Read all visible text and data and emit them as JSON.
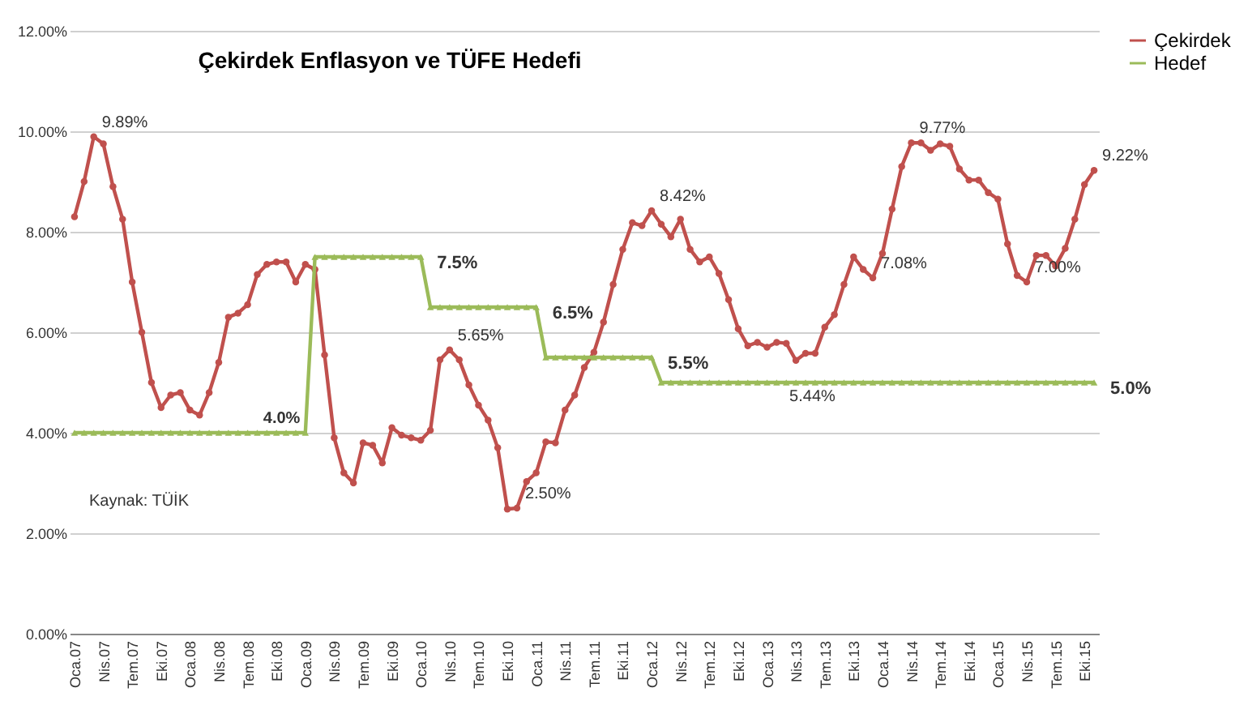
{
  "chart_data": {
    "type": "line",
    "title": "Çekirdek Enflasyon ve TÜFE Hedefi",
    "categories": [
      "Oca.07",
      null,
      null,
      "Nis.07",
      null,
      null,
      "Tem.07",
      null,
      null,
      "Eki.07",
      null,
      null,
      "Oca.08",
      null,
      null,
      "Nis.08",
      null,
      null,
      "Tem.08",
      null,
      null,
      "Eki.08",
      null,
      null,
      "Oca.09",
      null,
      null,
      "Nis.09",
      null,
      null,
      "Tem.09",
      null,
      null,
      "Eki.09",
      null,
      null,
      "Oca.10",
      null,
      null,
      "Nis.10",
      null,
      null,
      "Tem.10",
      null,
      null,
      "Eki.10",
      null,
      null,
      "Oca.11",
      null,
      null,
      "Nis.11",
      null,
      null,
      "Tem.11",
      null,
      null,
      "Eki.11",
      null,
      null,
      "Oca.12",
      null,
      null,
      "Nis.12",
      null,
      null,
      "Tem.12",
      null,
      null,
      "Eki.12",
      null,
      null,
      "Oca.13",
      null,
      null,
      "Nis.13",
      null,
      null,
      "Tem.13",
      null,
      null,
      "Eki.13",
      null,
      null,
      "Oca.14",
      null,
      null,
      "Nis.14",
      null,
      null,
      "Tem.14",
      null,
      null,
      "Eki.14",
      null,
      null,
      "Oca.15",
      null,
      null,
      "Nis.15",
      null,
      null,
      "Tem.15",
      null,
      null,
      "Eki.15",
      null
    ],
    "series": [
      {
        "name": "Çekirdek",
        "color": "#c0504d",
        "marker": "circle",
        "values": [
          8.3,
          9.0,
          9.89,
          9.75,
          8.9,
          8.25,
          7.0,
          6.0,
          5.0,
          4.5,
          4.75,
          4.8,
          4.45,
          4.35,
          4.8,
          5.4,
          6.3,
          6.38,
          6.55,
          7.15,
          7.35,
          7.4,
          7.4,
          7.0,
          7.35,
          7.25,
          5.55,
          3.9,
          3.2,
          3.0,
          3.8,
          3.75,
          3.4,
          4.1,
          3.95,
          3.9,
          3.85,
          4.05,
          5.45,
          5.65,
          5.45,
          4.95,
          4.55,
          4.25,
          3.7,
          2.48,
          2.5,
          3.03,
          3.2,
          3.82,
          3.8,
          4.45,
          4.75,
          5.3,
          5.6,
          6.2,
          6.95,
          7.65,
          8.18,
          8.12,
          8.42,
          8.15,
          7.9,
          8.25,
          7.65,
          7.4,
          7.5,
          7.17,
          6.65,
          6.07,
          5.73,
          5.8,
          5.7,
          5.8,
          5.78,
          5.44,
          5.58,
          5.58,
          6.1,
          6.35,
          6.95,
          7.5,
          7.25,
          7.08,
          7.57,
          8.45,
          9.3,
          9.77,
          9.77,
          9.62,
          9.75,
          9.7,
          9.25,
          9.03,
          9.03,
          8.78,
          8.65,
          7.76,
          7.13,
          7.0,
          7.53,
          7.53,
          7.32,
          7.67,
          8.25,
          8.94,
          9.22
        ],
        "value_labels": [
          null,
          null,
          "9.89%",
          null,
          null,
          null,
          null,
          null,
          null,
          null,
          null,
          null,
          null,
          null,
          null,
          null,
          null,
          null,
          null,
          null,
          null,
          null,
          null,
          null,
          null,
          null,
          null,
          null,
          null,
          null,
          null,
          null,
          null,
          null,
          null,
          null,
          null,
          null,
          null,
          "5.65%",
          null,
          null,
          null,
          null,
          null,
          null,
          "2.50%",
          null,
          null,
          null,
          null,
          null,
          null,
          null,
          null,
          null,
          null,
          null,
          null,
          null,
          "8.42%",
          null,
          null,
          null,
          null,
          null,
          null,
          null,
          null,
          null,
          null,
          null,
          null,
          null,
          null,
          "5.44%",
          null,
          null,
          null,
          null,
          null,
          null,
          null,
          "7.08%",
          null,
          null,
          null,
          "9.77%",
          null,
          null,
          null,
          null,
          null,
          null,
          null,
          null,
          null,
          null,
          null,
          "7.00%",
          null,
          null,
          null,
          null,
          null,
          null,
          "9.22%"
        ]
      },
      {
        "name": "Hedef",
        "color": "#9bbb59",
        "marker": "triangle",
        "values": [
          4.0,
          4.0,
          4.0,
          4.0,
          4.0,
          4.0,
          4.0,
          4.0,
          4.0,
          4.0,
          4.0,
          4.0,
          4.0,
          4.0,
          4.0,
          4.0,
          4.0,
          4.0,
          4.0,
          4.0,
          4.0,
          4.0,
          4.0,
          4.0,
          4.0,
          7.5,
          7.5,
          7.5,
          7.5,
          7.5,
          7.5,
          7.5,
          7.5,
          7.5,
          7.5,
          7.5,
          7.5,
          6.5,
          6.5,
          6.5,
          6.5,
          6.5,
          6.5,
          6.5,
          6.5,
          6.5,
          6.5,
          6.5,
          6.5,
          5.5,
          5.5,
          5.5,
          5.5,
          5.5,
          5.5,
          5.5,
          5.5,
          5.5,
          5.5,
          5.5,
          5.5,
          5.0,
          5.0,
          5.0,
          5.0,
          5.0,
          5.0,
          5.0,
          5.0,
          5.0,
          5.0,
          5.0,
          5.0,
          5.0,
          5.0,
          5.0,
          5.0,
          5.0,
          5.0,
          5.0,
          5.0,
          5.0,
          5.0,
          5.0,
          5.0,
          5.0,
          5.0,
          5.0,
          5.0,
          5.0,
          5.0,
          5.0,
          5.0,
          5.0,
          5.0,
          5.0,
          5.0,
          5.0,
          5.0,
          5.0,
          5.0,
          5.0,
          5.0,
          5.0,
          5.0,
          5.0,
          5.0
        ],
        "value_labels": [
          null,
          null,
          null,
          null,
          null,
          null,
          null,
          null,
          null,
          null,
          null,
          null,
          null,
          null,
          null,
          null,
          null,
          null,
          null,
          null,
          null,
          null,
          null,
          null,
          "4.0%",
          null,
          null,
          null,
          null,
          null,
          null,
          null,
          null,
          null,
          null,
          null,
          "7.5%",
          null,
          null,
          null,
          null,
          null,
          null,
          null,
          null,
          null,
          null,
          null,
          "6.5%",
          null,
          null,
          null,
          null,
          null,
          null,
          null,
          null,
          null,
          null,
          null,
          "5.5%",
          null,
          null,
          null,
          null,
          null,
          null,
          null,
          null,
          null,
          null,
          null,
          null,
          null,
          null,
          null,
          null,
          null,
          null,
          null,
          null,
          null,
          null,
          null,
          null,
          null,
          null,
          null,
          null,
          null,
          null,
          null,
          null,
          null,
          null,
          null,
          null,
          null,
          null,
          null,
          null,
          null,
          null,
          null,
          null,
          null,
          "5.0%"
        ]
      }
    ],
    "ylim": [
      0,
      12
    ],
    "yticks": [
      {
        "value": 0,
        "label": "0.00%"
      },
      {
        "value": 2,
        "label": "2.00%"
      },
      {
        "value": 4,
        "label": "4.00%"
      },
      {
        "value": 6,
        "label": "6.00%"
      },
      {
        "value": 8,
        "label": "8.00%"
      },
      {
        "value": 10,
        "label": "10.00%"
      },
      {
        "value": 12,
        "label": "12.00%"
      }
    ],
    "grid": "y",
    "legend": "right",
    "line_style": "solid",
    "annotations": [
      {
        "text": "Kaynak: TÜİK"
      }
    ]
  }
}
